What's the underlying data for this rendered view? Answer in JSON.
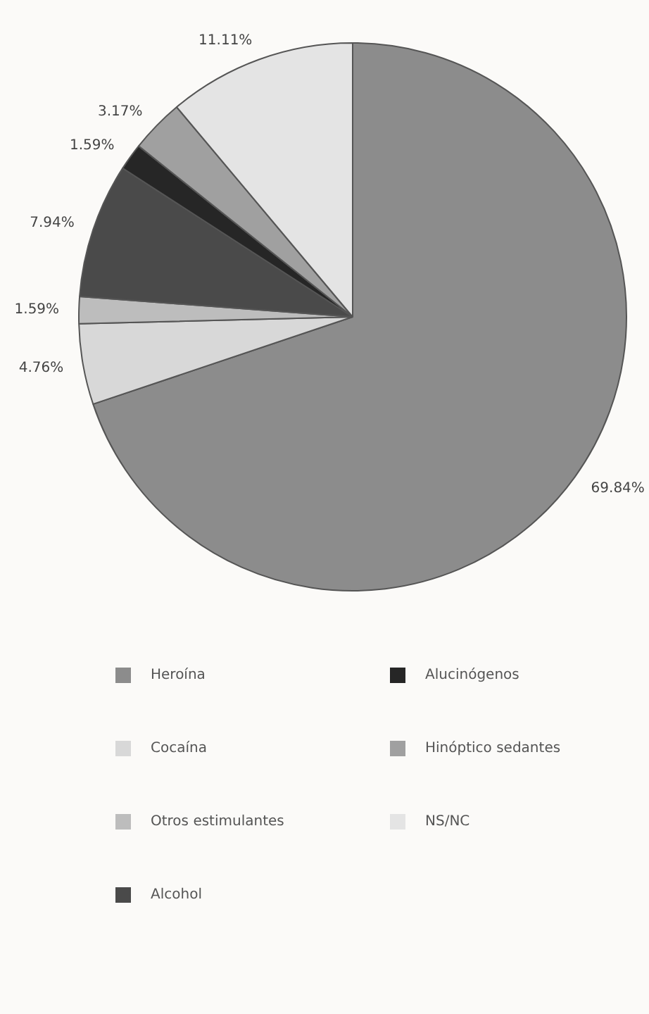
{
  "chart_data": {
    "type": "pie",
    "categories": [
      "Heroína",
      "Cocaína",
      "Otros estimulantes",
      "Alcohol",
      "Alucinógenos",
      "Hinóptico sedantes",
      "NS/NC"
    ],
    "values": [
      69.84,
      4.76,
      1.59,
      7.94,
      1.59,
      3.17,
      11.11
    ],
    "colors": [
      "#8c8c8c",
      "#d8d8d8",
      "#bdbdbd",
      "#4a4a4a",
      "#262626",
      "#a0a0a0",
      "#e4e4e4"
    ],
    "value_labels": [
      "69.84%",
      "4.76%",
      "1.59%",
      "7.94%",
      "1.59%",
      "3.17%",
      "11.11%"
    ],
    "legend": "bottom"
  }
}
